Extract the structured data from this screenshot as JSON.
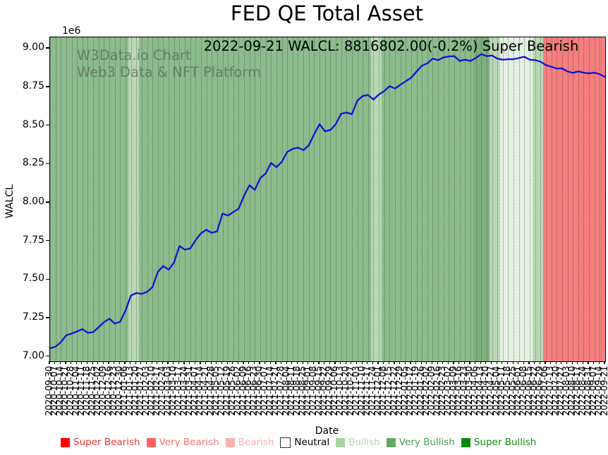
{
  "title": "FED QE Total Asset",
  "annotation": "2022-09-21 WALCL: 8816802.00(-0.2%) Super Bearish",
  "watermark": {
    "line1": "W3Data.io Chart",
    "line2": "Web3 Data & NFT Platform"
  },
  "axes": {
    "xlabel": "Date",
    "ylabel": "WALCL",
    "offset_label": "1e6"
  },
  "legend": {
    "position": "bottom",
    "items": [
      {
        "label": "Super Bearish",
        "swatch": "#ff0000",
        "text_color": "#e23b3b",
        "swatch_border": "none"
      },
      {
        "label": "Very Bearish",
        "swatch": "#ff6060",
        "text_color": "#f17474",
        "swatch_border": "none"
      },
      {
        "label": "Bearish",
        "swatch": "#ffb0b0",
        "text_color": "#f9b0b0",
        "swatch_border": "none"
      },
      {
        "label": "Neutral",
        "swatch": "#ffffff",
        "text_color": "#000000",
        "swatch_border": "#333333"
      },
      {
        "label": "Bullish",
        "swatch": "#a9d2a3",
        "text_color": "#b4d6ae",
        "swatch_border": "none"
      },
      {
        "label": "Very Bullish",
        "swatch": "#63a963",
        "text_color": "#4d9c4d",
        "swatch_border": "none"
      },
      {
        "label": "Super Bullish",
        "swatch": "#068a06",
        "text_color": "#148a14",
        "swatch_border": "none"
      }
    ]
  },
  "chart_data": {
    "type": "line",
    "title": "FED QE Total Asset",
    "xlabel": "Date",
    "ylabel": "WALCL",
    "y_offset_multiplier": "1e6",
    "grid": "vertical-dotted",
    "legend_position": "bottom",
    "line_color": "#1111d4",
    "ylim": [
      6971000,
      9074000
    ],
    "yticks": [
      7000000,
      7250000,
      7500000,
      7750000,
      8000000,
      8250000,
      8500000,
      8750000,
      9000000
    ],
    "ytick_labels": [
      "7.00",
      "7.25",
      "7.50",
      "7.75",
      "8.00",
      "8.25",
      "8.50",
      "8.75",
      "9.00"
    ],
    "latest": {
      "date": "2022-09-21",
      "value": 8816802.0,
      "change_pct": -0.2,
      "signal": "Super Bearish"
    },
    "x": [
      "2020-09-30",
      "2020-10-07",
      "2020-10-14",
      "2020-10-21",
      "2020-10-28",
      "2020-11-04",
      "2020-11-11",
      "2020-11-18",
      "2020-11-25",
      "2020-12-02",
      "2020-12-09",
      "2020-12-16",
      "2020-12-23",
      "2020-12-30",
      "2021-01-06",
      "2021-01-13",
      "2021-01-20",
      "2021-01-27",
      "2021-02-03",
      "2021-02-10",
      "2021-02-17",
      "2021-02-24",
      "2021-03-03",
      "2021-03-10",
      "2021-03-17",
      "2021-03-24",
      "2021-03-31",
      "2021-04-07",
      "2021-04-14",
      "2021-04-21",
      "2021-04-28",
      "2021-05-05",
      "2021-05-12",
      "2021-05-19",
      "2021-05-26",
      "2021-06-02",
      "2021-06-09",
      "2021-06-16",
      "2021-06-23",
      "2021-06-30",
      "2021-07-07",
      "2021-07-14",
      "2021-07-21",
      "2021-07-28",
      "2021-08-04",
      "2021-08-11",
      "2021-08-18",
      "2021-08-25",
      "2021-09-01",
      "2021-09-08",
      "2021-09-15",
      "2021-09-22",
      "2021-09-29",
      "2021-10-06",
      "2021-10-13",
      "2021-10-20",
      "2021-10-27",
      "2021-11-03",
      "2021-11-10",
      "2021-11-17",
      "2021-11-24",
      "2021-12-01",
      "2021-12-08",
      "2021-12-15",
      "2021-12-22",
      "2021-12-29",
      "2022-01-05",
      "2022-01-12",
      "2022-01-19",
      "2022-01-26",
      "2022-02-02",
      "2022-02-09",
      "2022-02-16",
      "2022-02-23",
      "2022-03-02",
      "2022-03-09",
      "2022-03-16",
      "2022-03-23",
      "2022-03-30",
      "2022-04-06",
      "2022-04-13",
      "2022-04-20",
      "2022-04-27",
      "2022-05-04",
      "2022-05-11",
      "2022-05-18",
      "2022-05-25",
      "2022-06-01",
      "2022-06-08",
      "2022-06-15",
      "2022-06-22",
      "2022-06-29",
      "2022-07-06",
      "2022-07-13",
      "2022-07-20",
      "2022-07-27",
      "2022-08-03",
      "2022-08-10",
      "2022-08-17",
      "2022-08-24",
      "2022-08-31",
      "2022-09-07",
      "2022-09-14",
      "2022-09-21"
    ],
    "y": [
      7056000,
      7066000,
      7095000,
      7140000,
      7151000,
      7165000,
      7180000,
      7156000,
      7160000,
      7192000,
      7225000,
      7248000,
      7216000,
      7228000,
      7300000,
      7398000,
      7414000,
      7409000,
      7422000,
      7452000,
      7552000,
      7589000,
      7566000,
      7612000,
      7719000,
      7696000,
      7703000,
      7757000,
      7802000,
      7825000,
      7805000,
      7815000,
      7930000,
      7917000,
      7940000,
      7962000,
      8046000,
      8114000,
      8084000,
      8160000,
      8190000,
      8259000,
      8231000,
      8266000,
      8330000,
      8350000,
      8358000,
      8342000,
      8373000,
      8445000,
      8510000,
      8464000,
      8472000,
      8510000,
      8578000,
      8586000,
      8575000,
      8662000,
      8693000,
      8700000,
      8670000,
      8703000,
      8725000,
      8757000,
      8742000,
      8766000,
      8789000,
      8812000,
      8852000,
      8890000,
      8905000,
      8936000,
      8926000,
      8944000,
      8950000,
      8952000,
      8921000,
      8929000,
      8921000,
      8940000,
      8965000,
      8952000,
      8956000,
      8936000,
      8929000,
      8932000,
      8932000,
      8940000,
      8948000,
      8929000,
      8926000,
      8916000,
      8894000,
      8883000,
      8872000,
      8872000,
      8853000,
      8843000,
      8853000,
      8845000,
      8840000,
      8845000,
      8834000,
      8816802
    ],
    "band_colors": {
      "very-bullish": "#8cbc8c",
      "very-bullish-dark": "#7db07d",
      "bullish": "#b9d8b4",
      "neutral-pale": "#e5f0e2",
      "very-bearish": "#f57e7e"
    },
    "bands": [
      {
        "color_key": "very-bullish",
        "from": 0,
        "to": 14
      },
      {
        "color_key": "bullish",
        "from": 15,
        "to": 16
      },
      {
        "color_key": "very-bullish",
        "from": 17,
        "to": 59
      },
      {
        "color_key": "bullish",
        "from": 60,
        "to": 61
      },
      {
        "color_key": "very-bullish",
        "from": 62,
        "to": 78
      },
      {
        "color_key": "very-bullish-dark",
        "from": 79,
        "to": 81
      },
      {
        "color_key": "bullish",
        "from": 82,
        "to": 83
      },
      {
        "color_key": "neutral-pale",
        "from": 84,
        "to": 89
      },
      {
        "color_key": "bullish",
        "from": 90,
        "to": 91
      },
      {
        "color_key": "very-bearish",
        "from": 92,
        "to": 103
      }
    ]
  }
}
